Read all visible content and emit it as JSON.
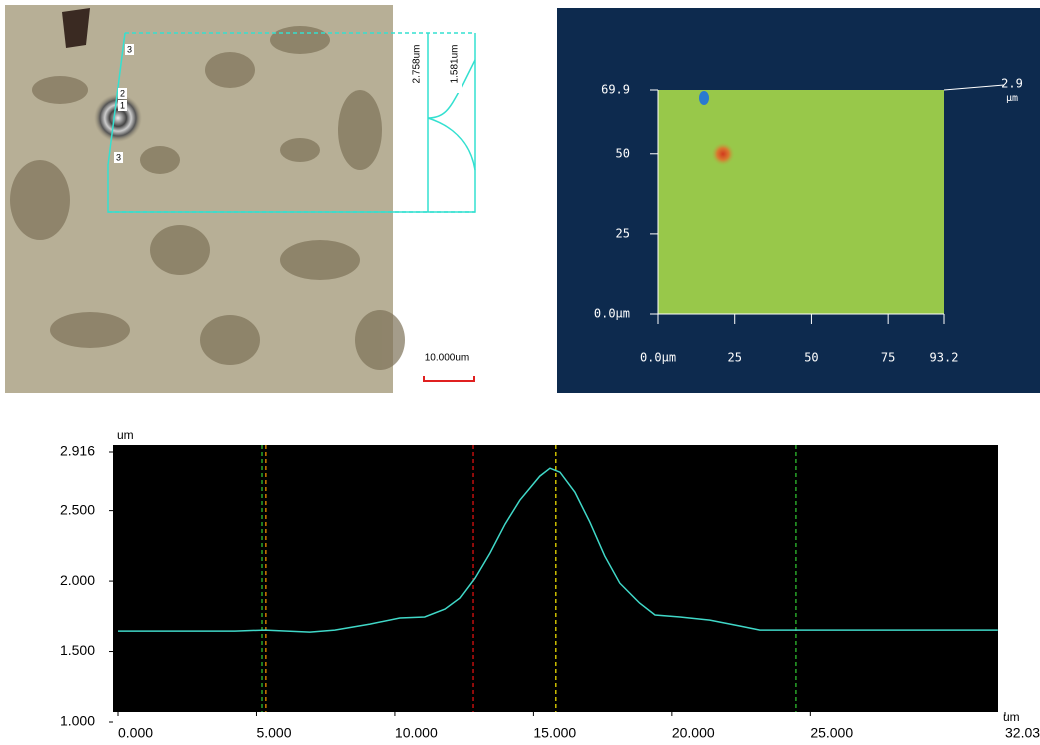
{
  "micrograph": {
    "labels": [
      "2.758um",
      "1.581um"
    ],
    "markers": [
      "3",
      "2",
      "1",
      "3"
    ],
    "scale_bar": "10.000um"
  },
  "chart_data": [
    {
      "type": "line",
      "y_unit": "um",
      "x_unit": "um",
      "x": [
        0,
        4.22,
        5.31,
        6.93,
        7.83,
        9.1,
        10.18,
        11.08,
        11.81,
        12.35,
        12.89,
        13.43,
        13.97,
        14.51,
        15.23,
        15.6,
        15.96,
        16.5,
        17.04,
        17.58,
        18.12,
        18.84,
        19.39,
        20.29,
        21.37,
        22.45,
        23.18,
        24.62,
        31.77
      ],
      "series": [
        {
          "color": "#40d8c8",
          "values": [
            1.645,
            1.645,
            1.652,
            1.638,
            1.652,
            1.695,
            1.738,
            1.745,
            1.801,
            1.879,
            2.021,
            2.199,
            2.404,
            2.574,
            2.745,
            2.801,
            2.773,
            2.631,
            2.418,
            2.177,
            1.986,
            1.844,
            1.759,
            1.745,
            1.723,
            1.681,
            1.652,
            1.652,
            1.652
          ]
        }
      ],
      "cursors": [
        {
          "x": 5.2,
          "color": "#33cc33"
        },
        {
          "x": 5.34,
          "color": "#ff9900"
        },
        {
          "x": 12.82,
          "color": "#ee1111"
        },
        {
          "x": 15.81,
          "color": "#ffee00"
        },
        {
          "x": 24.48,
          "color": "#33cc33"
        }
      ],
      "xlim": [
        0,
        32.03
      ],
      "ylim": [
        1.0,
        2.916
      ],
      "xticks": [
        {
          "value": 0,
          "label": "0.000"
        },
        {
          "value": 5,
          "label": "5.000"
        },
        {
          "value": 10,
          "label": "10.000"
        },
        {
          "value": 15,
          "label": "15.000"
        },
        {
          "value": 20,
          "label": "20.000"
        },
        {
          "value": 25,
          "label": "25.000"
        },
        32.03
      ],
      "yticks": [
        {
          "value": 1,
          "label": "1.000"
        },
        {
          "value": 1.5,
          "label": "1.500"
        },
        {
          "value": 2,
          "label": "2.000"
        },
        {
          "value": 2.5,
          "label": "2.500"
        },
        {
          "value": 2.916,
          "label": "2.916"
        }
      ]
    },
    {
      "type": "heatmap",
      "zmax": 2.9,
      "zunit": "µm",
      "xlim": [
        0,
        93.2
      ],
      "ylim": [
        0,
        69.9
      ],
      "xticks": [
        {
          "value": 0,
          "label": "0.0µm"
        },
        25.0,
        50.0,
        75.0,
        93.2
      ],
      "yticks": [
        {
          "value": 0,
          "label": "0.0µm"
        },
        25.0,
        50.0,
        69.9
      ]
    }
  ]
}
